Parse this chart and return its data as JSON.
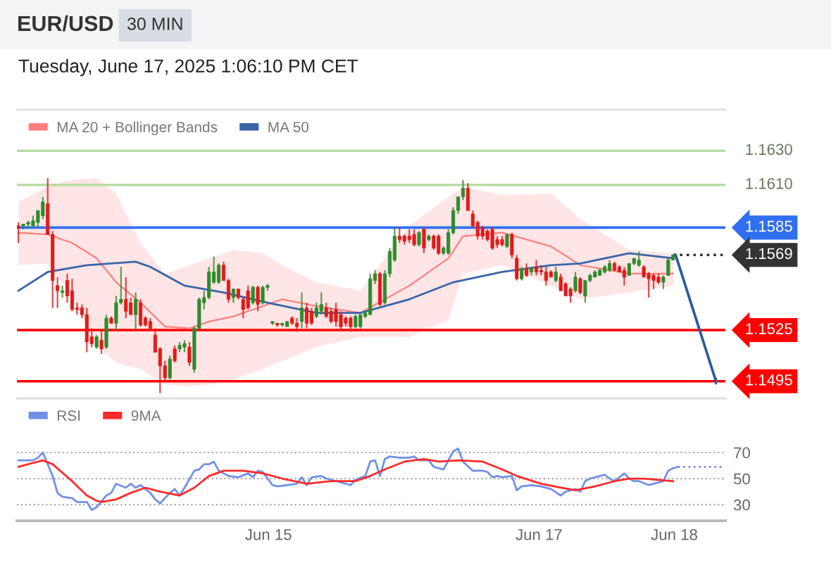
{
  "chart_data": [
    {
      "type": "candlestick",
      "title": "EUR/USD",
      "subtitle": "30 MIN",
      "annotations": [
        "Tuesday, June 17, 2025 1:06:10 PM CET"
      ],
      "xlim": [
        "2025-06-13T03:23",
        "2025-06-18T09:03"
      ],
      "ylim": [
        1.1485,
        1.1654
      ],
      "tick_labels": false,
      "legend": "top left",
      "series": [
        {
          "x": [
            "2025-06-13T03:39",
            "2025-06-13T04:31",
            "2025-06-13T05:23",
            "2025-06-13T06:15",
            "2025-06-13T07:07",
            "2025-06-13T07:59",
            "2025-06-13T08:51",
            "2025-06-13T09:43",
            "2025-06-13T10:35",
            "2025-06-13T11:27",
            "2025-06-13T12:19",
            "2025-06-13T13:11",
            "2025-06-13T14:03",
            "2025-06-13T14:55",
            "2025-06-13T15:47",
            "2025-06-13T16:39",
            "2025-06-13T17:31",
            "2025-06-13T18:23",
            "2025-06-13T19:15",
            "2025-06-13T20:07",
            "2025-06-13T20:59",
            "2025-06-13T21:51",
            "2025-06-13T22:43",
            "2025-06-13T23:35",
            "2025-06-14T00:27",
            "2025-06-14T01:19",
            "2025-06-14T02:11",
            "2025-06-14T03:03",
            "2025-06-14T03:55",
            "2025-06-14T04:47",
            "2025-06-14T05:39",
            "2025-06-14T06:31",
            "2025-06-14T07:23",
            "2025-06-14T08:15",
            "2025-06-14T09:07",
            "2025-06-14T09:59",
            "2025-06-14T10:51",
            "2025-06-14T11:43",
            "2025-06-14T12:35",
            "2025-06-14T13:27",
            "2025-06-14T14:19",
            "2025-06-14T15:11",
            "2025-06-14T16:03",
            "2025-06-14T16:55",
            "2025-06-14T17:47",
            "2025-06-14T18:39",
            "2025-06-14T19:31",
            "2025-06-14T20:23",
            "2025-06-14T21:15",
            "2025-06-14T22:07",
            "2025-06-14T22:59",
            "2025-06-14T23:51",
            "2025-06-15T00:43",
            "2025-06-15T01:35",
            "2025-06-15T02:27",
            "2025-06-15T03:19",
            "2025-06-15T04:11",
            "2025-06-15T05:03",
            "2025-06-15T05:55",
            "2025-06-15T06:47",
            "2025-06-15T07:39",
            "2025-06-15T08:31",
            "2025-06-15T09:23",
            "2025-06-15T10:15",
            "2025-06-15T11:07",
            "2025-06-15T11:59",
            "2025-06-15T12:51",
            "2025-06-15T13:43",
            "2025-06-15T14:35",
            "2025-06-15T15:27",
            "2025-06-15T16:19",
            "2025-06-15T17:11",
            "2025-06-15T18:03",
            "2025-06-15T18:55",
            "2025-06-15T19:47",
            "2025-06-15T20:39",
            "2025-06-15T21:31",
            "2025-06-15T22:23",
            "2025-06-15T23:15",
            "2025-06-16T00:07",
            "2025-06-16T00:59",
            "2025-06-16T01:51",
            "2025-06-16T02:43",
            "2025-06-16T03:35",
            "2025-06-16T04:27",
            "2025-06-16T05:19",
            "2025-06-16T06:11",
            "2025-06-16T07:03",
            "2025-06-16T07:55",
            "2025-06-16T08:47",
            "2025-06-16T09:39",
            "2025-06-16T10:31",
            "2025-06-16T11:23",
            "2025-06-16T12:15",
            "2025-06-16T13:07",
            "2025-06-16T13:59",
            "2025-06-16T14:51",
            "2025-06-16T15:43",
            "2025-06-16T16:35",
            "2025-06-16T17:27",
            "2025-06-16T18:19",
            "2025-06-16T19:11",
            "2025-06-16T20:03",
            "2025-06-16T20:55",
            "2025-06-16T21:47",
            "2025-06-16T22:39",
            "2025-06-16T23:31",
            "2025-06-17T00:23",
            "2025-06-17T01:15",
            "2025-06-17T02:07",
            "2025-06-17T02:59",
            "2025-06-17T03:51",
            "2025-06-17T04:43",
            "2025-06-17T05:35",
            "2025-06-17T06:27",
            "2025-06-17T07:19",
            "2025-06-17T08:11",
            "2025-06-17T09:03",
            "2025-06-17T09:55",
            "2025-06-17T10:47",
            "2025-06-17T11:39",
            "2025-06-17T12:31",
            "2025-06-17T13:23",
            "2025-06-17T14:15",
            "2025-06-17T15:07",
            "2025-06-17T15:59",
            "2025-06-17T16:51",
            "2025-06-17T17:43",
            "2025-06-17T18:35",
            "2025-06-17T19:27",
            "2025-06-17T20:19",
            "2025-06-17T21:11",
            "2025-06-17T22:03",
            "2025-06-17T22:55",
            "2025-06-17T23:47"
          ],
          "ohlc": [
            [
              1.1586,
              1.1588,
              1.1576,
              1.1585
            ],
            [
              1.1586,
              1.1587,
              1.1584,
              1.1587
            ],
            [
              1.1587,
              1.1589,
              1.1585,
              1.1588
            ],
            [
              1.1586,
              1.1592,
              1.1585,
              1.1589
            ],
            [
              1.1588,
              1.1595,
              1.1585,
              1.1595
            ],
            [
              1.1592,
              1.1603,
              1.159,
              1.16
            ],
            [
              1.1599,
              1.1614,
              1.1581,
              1.1581
            ],
            [
              1.1581,
              1.1583,
              1.1538,
              1.1554
            ],
            [
              1.1551,
              1.1556,
              1.1538,
              1.1548
            ],
            [
              1.1547,
              1.1551,
              1.1544,
              1.1548
            ],
            [
              1.1554,
              1.1558,
              1.1541,
              1.1545
            ],
            [
              1.1548,
              1.1555,
              1.1536,
              1.1537
            ],
            [
              1.1538,
              1.1541,
              1.1534,
              1.1537
            ],
            [
              1.1538,
              1.154,
              1.1532,
              1.1534
            ],
            [
              1.1534,
              1.1538,
              1.1512,
              1.1518
            ],
            [
              1.1521,
              1.1526,
              1.1515,
              1.1517
            ],
            [
              1.1515,
              1.1522,
              1.1514,
              1.1521
            ],
            [
              1.1519,
              1.1525,
              1.1511,
              1.1514
            ],
            [
              1.1515,
              1.1534,
              1.1514,
              1.1532
            ],
            [
              1.1532,
              1.1533,
              1.1529,
              1.1529
            ],
            [
              1.1529,
              1.1545,
              1.1525,
              1.1541
            ],
            [
              1.1541,
              1.1562,
              1.154,
              1.1543
            ],
            [
              1.1543,
              1.1556,
              1.1532,
              1.1536
            ],
            [
              1.1541,
              1.1544,
              1.1534,
              1.1534
            ],
            [
              1.1534,
              1.1547,
              1.1525,
              1.1543
            ],
            [
              1.1541,
              1.1543,
              1.1527,
              1.1528
            ],
            [
              1.1532,
              1.1533,
              1.1527,
              1.1528
            ],
            [
              1.153,
              1.1532,
              1.1525,
              1.1526
            ],
            [
              1.1522,
              1.1526,
              1.1512,
              1.1512
            ],
            [
              1.1514,
              1.1515,
              1.1488,
              1.1504
            ],
            [
              1.1504,
              1.1507,
              1.1495,
              1.1497
            ],
            [
              1.1497,
              1.151,
              1.1496,
              1.1508
            ],
            [
              1.1514,
              1.1516,
              1.1506,
              1.1507
            ],
            [
              1.1514,
              1.1518,
              1.1512,
              1.1516
            ],
            [
              1.1515,
              1.1519,
              1.1512,
              1.1517
            ],
            [
              1.1515,
              1.1518,
              1.1504,
              1.1506
            ],
            [
              1.1502,
              1.1527,
              1.15,
              1.1526
            ],
            [
              1.1526,
              1.1544,
              1.1525,
              1.1543
            ],
            [
              1.1541,
              1.1548,
              1.1537,
              1.1544
            ],
            [
              1.1544,
              1.1562,
              1.1543,
              1.1559
            ],
            [
              1.1553,
              1.1568,
              1.1552,
              1.1559
            ],
            [
              1.1553,
              1.1564,
              1.1552,
              1.1563
            ],
            [
              1.1563,
              1.1565,
              1.1554,
              1.1554
            ],
            [
              1.1554,
              1.1555,
              1.1541,
              1.1543
            ],
            [
              1.1544,
              1.1549,
              1.1541,
              1.1549
            ],
            [
              1.1549,
              1.1549,
              1.1543,
              1.1544
            ],
            [
              1.1543,
              1.1544,
              1.1532,
              1.1537
            ],
            [
              1.1548,
              1.1551,
              1.1537,
              1.1538
            ],
            [
              1.1541,
              1.1551,
              1.154,
              1.155
            ],
            [
              1.155,
              1.1551,
              1.1536,
              1.154
            ],
            [
              1.1541,
              1.1551,
              1.154,
              1.155
            ],
            [
              1.155,
              1.1552,
              1.1548,
              1.1551
            ],
            [
              1.1529,
              1.153,
              1.1528,
              1.153
            ],
            [
              1.1529,
              1.1529,
              1.1527,
              1.1528
            ],
            [
              1.1528,
              1.1529,
              1.1527,
              1.1529
            ],
            [
              1.1527,
              1.153,
              1.1527,
              1.153
            ],
            [
              1.1532,
              1.1533,
              1.1528,
              1.1529
            ],
            [
              1.1529,
              1.1532,
              1.1524,
              1.1527
            ],
            [
              1.153,
              1.1547,
              1.1526,
              1.1538
            ],
            [
              1.1538,
              1.1541,
              1.1526,
              1.1529
            ],
            [
              1.1536,
              1.1538,
              1.1528,
              1.1529
            ],
            [
              1.1533,
              1.1541,
              1.1532,
              1.1538
            ],
            [
              1.1536,
              1.1547,
              1.1534,
              1.154
            ],
            [
              1.1538,
              1.1541,
              1.1532,
              1.1533
            ],
            [
              1.1536,
              1.1538,
              1.1529,
              1.153
            ],
            [
              1.1537,
              1.1541,
              1.1527,
              1.153
            ],
            [
              1.1534,
              1.1536,
              1.1525,
              1.1527
            ],
            [
              1.1532,
              1.1533,
              1.1527,
              1.1529
            ],
            [
              1.1532,
              1.1533,
              1.1524,
              1.1527
            ],
            [
              1.1527,
              1.1534,
              1.1526,
              1.1533
            ],
            [
              1.1527,
              1.1534,
              1.1526,
              1.1534
            ],
            [
              1.1533,
              1.1536,
              1.1532,
              1.1535
            ],
            [
              1.1534,
              1.1558,
              1.1534,
              1.1555
            ],
            [
              1.1554,
              1.156,
              1.1552,
              1.1558
            ],
            [
              1.1558,
              1.1559,
              1.1539,
              1.154
            ],
            [
              1.1541,
              1.156,
              1.154,
              1.1558
            ],
            [
              1.1558,
              1.1573,
              1.1556,
              1.1571
            ],
            [
              1.1566,
              1.1585,
              1.1565,
              1.158
            ],
            [
              1.158,
              1.1585,
              1.1576,
              1.1578
            ],
            [
              1.158,
              1.1581,
              1.1575,
              1.1577
            ],
            [
              1.158,
              1.1584,
              1.1576,
              1.1578
            ],
            [
              1.1581,
              1.1584,
              1.1574,
              1.1575
            ],
            [
              1.1575,
              1.1583,
              1.1574,
              1.1582
            ],
            [
              1.1584,
              1.1585,
              1.157,
              1.1573
            ],
            [
              1.1578,
              1.1581,
              1.1577,
              1.158
            ],
            [
              1.158,
              1.1581,
              1.1572,
              1.1573
            ],
            [
              1.158,
              1.1581,
              1.1569,
              1.157
            ],
            [
              1.157,
              1.1574,
              1.1569,
              1.1573
            ],
            [
              1.157,
              1.1584,
              1.1569,
              1.1582
            ],
            [
              1.1582,
              1.1597,
              1.1581,
              1.1595
            ],
            [
              1.1595,
              1.1603,
              1.1593,
              1.1603
            ],
            [
              1.1603,
              1.1613,
              1.1601,
              1.1608
            ],
            [
              1.1608,
              1.1611,
              1.1595,
              1.1595
            ],
            [
              1.1593,
              1.1595,
              1.1585,
              1.1586
            ],
            [
              1.1588,
              1.1589,
              1.1578,
              1.158
            ],
            [
              1.1585,
              1.1586,
              1.1578,
              1.158
            ],
            [
              1.1583,
              1.1584,
              1.1577,
              1.1578
            ],
            [
              1.1584,
              1.1585,
              1.1572,
              1.1573
            ],
            [
              1.1578,
              1.158,
              1.1573,
              1.1575
            ],
            [
              1.1578,
              1.158,
              1.1574,
              1.1575
            ],
            [
              1.1574,
              1.1581,
              1.1573,
              1.1581
            ],
            [
              1.1581,
              1.1582,
              1.1567,
              1.1569
            ],
            [
              1.1567,
              1.1569,
              1.1554,
              1.1555
            ],
            [
              1.1555,
              1.1562,
              1.1554,
              1.1561
            ],
            [
              1.1561,
              1.1564,
              1.1556,
              1.1557
            ],
            [
              1.1559,
              1.1562,
              1.1557,
              1.1561
            ],
            [
              1.1562,
              1.1566,
              1.1557,
              1.1559
            ],
            [
              1.156,
              1.1563,
              1.1557,
              1.1559
            ],
            [
              1.1559,
              1.1562,
              1.1551,
              1.1554
            ],
            [
              1.1559,
              1.156,
              1.1556,
              1.1556
            ],
            [
              1.1554,
              1.1562,
              1.1553,
              1.1559
            ],
            [
              1.1556,
              1.1558,
              1.1548,
              1.1548
            ],
            [
              1.1552,
              1.1553,
              1.1545,
              1.1545
            ],
            [
              1.1549,
              1.155,
              1.1541,
              1.1545
            ],
            [
              1.1548,
              1.1559,
              1.1547,
              1.1556
            ],
            [
              1.1555,
              1.1556,
              1.1546,
              1.1547
            ],
            [
              1.1545,
              1.1554,
              1.1541,
              1.1554
            ],
            [
              1.1554,
              1.1558,
              1.1553,
              1.1557
            ],
            [
              1.1556,
              1.156,
              1.1556,
              1.1559
            ],
            [
              1.1557,
              1.1561,
              1.1557,
              1.156
            ],
            [
              1.1559,
              1.1563,
              1.1558,
              1.1562
            ],
            [
              1.156,
              1.1566,
              1.1559,
              1.1564
            ],
            [
              1.1564,
              1.1565,
              1.156,
              1.156
            ],
            [
              1.1562,
              1.1563,
              1.1559,
              1.1559
            ],
            [
              1.156,
              1.1562,
              1.1551,
              1.1556
            ],
            [
              1.1557,
              1.1564,
              1.1557,
              1.1564
            ],
            [
              1.1564,
              1.1567,
              1.1563,
              1.1567
            ],
            [
              1.1563,
              1.1571,
              1.1562,
              1.1566
            ],
            [
              1.1562,
              1.1563,
              1.1556,
              1.1556
            ],
            [
              1.1558,
              1.1559,
              1.1544,
              1.1555
            ],
            [
              1.1557,
              1.1558,
              1.1549,
              1.1554
            ],
            [
              1.1556,
              1.1558,
              1.1552,
              1.1553
            ],
            [
              1.1553,
              1.1557,
              1.1549,
              1.1556
            ],
            [
              1.1557,
              1.1567,
              1.1557,
              1.1566
            ],
            [
              1.1566,
              1.1569,
              1.1566,
              1.1569
            ]
          ],
          "colors": [
            "#e01b1b",
            "#2e8b2e",
            "#2e8b2e",
            "#2e8b2e",
            "#2e8b2e",
            "#2e8b2e",
            "#e01b1b",
            "#e01b1b",
            "#e01b1b",
            "#2e8b2e",
            "#e01b1b",
            "#e01b1b",
            "#e01b1b",
            "#e01b1b",
            "#e01b1b",
            "#e01b1b",
            "#2e8b2e",
            "#e01b1b",
            "#2e8b2e",
            "#e01b1b",
            "#2e8b2e",
            "#2e8b2e",
            "#e01b1b",
            "#e01b1b",
            "#2e8b2e",
            "#e01b1b",
            "#e01b1b",
            "#e01b1b",
            "#e01b1b",
            "#e01b1b",
            "#e01b1b",
            "#2e8b2e",
            "#e01b1b",
            "#2e8b2e",
            "#2e8b2e",
            "#e01b1b",
            "#2e8b2e",
            "#2e8b2e",
            "#2e8b2e",
            "#2e8b2e",
            "#2e8b2e",
            "#2e8b2e",
            "#e01b1b",
            "#e01b1b",
            "#2e8b2e",
            "#e01b1b",
            "#e01b1b",
            "#e01b1b",
            "#2e8b2e",
            "#e01b1b",
            "#2e8b2e",
            "#2e8b2e",
            "#2e8b2e",
            "#e01b1b",
            "#2e8b2e",
            "#2e8b2e",
            "#e01b1b",
            "#e01b1b",
            "#2e8b2e",
            "#e01b1b",
            "#e01b1b",
            "#2e8b2e",
            "#2e8b2e",
            "#e01b1b",
            "#e01b1b",
            "#e01b1b",
            "#e01b1b",
            "#e01b1b",
            "#e01b1b",
            "#2e8b2e",
            "#2e8b2e",
            "#2e8b2e",
            "#2e8b2e",
            "#2e8b2e",
            "#e01b1b",
            "#2e8b2e",
            "#2e8b2e",
            "#2e8b2e",
            "#e01b1b",
            "#e01b1b",
            "#e01b1b",
            "#e01b1b",
            "#2e8b2e",
            "#e01b1b",
            "#2e8b2e",
            "#e01b1b",
            "#e01b1b",
            "#2e8b2e",
            "#2e8b2e",
            "#2e8b2e",
            "#2e8b2e",
            "#2e8b2e",
            "#e01b1b",
            "#e01b1b",
            "#e01b1b",
            "#e01b1b",
            "#e01b1b",
            "#e01b1b",
            "#e01b1b",
            "#e01b1b",
            "#2e8b2e",
            "#e01b1b",
            "#e01b1b",
            "#2e8b2e",
            "#e01b1b",
            "#2e8b2e",
            "#e01b1b",
            "#e01b1b",
            "#e01b1b",
            "#e01b1b",
            "#2e8b2e",
            "#e01b1b",
            "#e01b1b",
            "#e01b1b",
            "#2e8b2e",
            "#e01b1b",
            "#2e8b2e",
            "#2e8b2e",
            "#2e8b2e",
            "#2e8b2e",
            "#2e8b2e",
            "#2e8b2e",
            "#e01b1b",
            "#e01b1b",
            "#e01b1b",
            "#2e8b2e",
            "#2e8b2e",
            "#2e8b2e",
            "#e01b1b",
            "#e01b1b",
            "#e01b1b",
            "#e01b1b",
            "#2e8b2e",
            "#2e8b2e",
            "#2e8b2e"
          ]
        },
        {
          "type": "line",
          "name": "MA 20 + Bollinger Bands",
          "color": "#ff7f7f",
          "x": [
            "2025-06-13T03:39",
            "2025-06-13T08:51",
            "2025-06-13T13:11",
            "2025-06-13T17:31",
            "2025-06-13T20:59",
            "2025-06-14T01:19",
            "2025-06-14T05:39",
            "2025-06-14T09:59",
            "2025-06-14T13:27",
            "2025-06-14T17:47",
            "2025-06-14T22:59",
            "2025-06-15T02:27",
            "2025-06-15T08:31",
            "2025-06-15T16:19",
            "2025-06-16T00:59",
            "2025-06-16T07:55",
            "2025-06-16T10:31",
            "2025-06-16T17:27",
            "2025-06-17T02:07",
            "2025-06-17T07:19",
            "2025-06-17T15:59",
            "2025-06-17T23:47"
          ],
          "values": [
            1.1582,
            1.1581,
            1.1576,
            1.1567,
            1.1553,
            1.1541,
            1.1527,
            1.1526,
            1.153,
            1.1533,
            1.1539,
            1.1543,
            1.1539,
            1.1535,
            1.1551,
            1.1567,
            1.158,
            1.1582,
            1.1574,
            1.1563,
            1.1558,
            1.1558
          ],
          "upper": [
            1.16,
            1.1609,
            1.1613,
            1.1614,
            1.1605,
            1.1576,
            1.1558,
            1.1563,
            1.1567,
            1.1572,
            1.157,
            1.1563,
            1.1553,
            1.1548,
            1.1586,
            1.1603,
            1.1609,
            1.1604,
            1.1605,
            1.159,
            1.1572,
            1.157
          ],
          "lower": [
            1.1563,
            1.1564,
            1.1545,
            1.1516,
            1.1506,
            1.1502,
            1.1493,
            1.1492,
            1.1493,
            1.1496,
            1.1502,
            1.1507,
            1.1515,
            1.1521,
            1.1521,
            1.1531,
            1.1558,
            1.1563,
            1.1551,
            1.1543,
            1.1547,
            1.1551
          ]
        },
        {
          "type": "line",
          "name": "MA 50",
          "color": "#3a64a8",
          "x": [
            "2025-06-13T03:39",
            "2025-06-13T08:51",
            "2025-06-13T15:47",
            "2025-06-14T00:27",
            "2025-06-14T03:03",
            "2025-06-14T09:07",
            "2025-06-14T16:03",
            "2025-06-14T23:51",
            "2025-06-15T08:31",
            "2025-06-15T16:19",
            "2025-06-16T00:59",
            "2025-06-16T08:47",
            "2025-06-16T17:27",
            "2025-06-17T02:07",
            "2025-06-17T07:19",
            "2025-06-17T15:59",
            "2025-06-17T23:47"
          ],
          "values": [
            1.1548,
            1.1559,
            1.1563,
            1.1565,
            1.1562,
            1.1551,
            1.1547,
            1.1541,
            1.1535,
            1.1535,
            1.1543,
            1.1553,
            1.1559,
            1.1563,
            1.1564,
            1.157,
            1.1567
          ]
        }
      ],
      "ref_lines": [
        {
          "axis": "y",
          "value": 1.163,
          "label": "1.1630",
          "color": "#b9dca3"
        },
        {
          "axis": "y",
          "value": 1.161,
          "label": "1.1610",
          "color": "#b9dca3"
        },
        {
          "axis": "y",
          "value": 1.1585,
          "label": "1.1585",
          "color": "#2f6ff0"
        },
        {
          "axis": "y",
          "value": 1.1569,
          "label": "1.1569",
          "color": "#333333",
          "line_style": "dotted"
        },
        {
          "axis": "y",
          "value": 1.1525,
          "label": "1.1525",
          "color": "#ff0000"
        },
        {
          "axis": "y",
          "value": 1.1495,
          "label": "1.1495",
          "color": "#ff0000"
        }
      ]
    },
    {
      "type": "line",
      "xlim": [
        "2025-06-13T03:23",
        "2025-06-18T09:03"
      ],
      "xticks": [
        {
          "value": "2025-06-15",
          "label": "Jun 15"
        },
        {
          "value": "2025-06-17",
          "label": "Jun 17"
        },
        {
          "value": "2025-06-18",
          "label": "Jun 18"
        }
      ],
      "ylim": [
        17.6,
        111.6
      ],
      "yticks": [
        30,
        50,
        70
      ],
      "grid": "y",
      "legend": "top left",
      "series": [
        {
          "name": "RSI",
          "color": "#7090e8",
          "x": [
            "2025-06-13T03:39",
            "2025-06-13T06:15",
            "2025-06-13T07:07",
            "2025-06-13T07:59",
            "2025-06-13T09:43",
            "2025-06-13T10:35",
            "2025-06-13T11:27",
            "2025-06-13T13:11",
            "2025-06-13T14:03",
            "2025-06-13T15:47",
            "2025-06-13T16:39",
            "2025-06-13T17:31",
            "2025-06-13T19:15",
            "2025-06-13T20:07",
            "2025-06-13T20:59",
            "2025-06-13T22:43",
            "2025-06-13T23:35",
            "2025-06-14T00:27",
            "2025-06-14T01:19",
            "2025-06-14T03:03",
            "2025-06-14T03:55",
            "2025-06-14T04:47",
            "2025-06-14T06:31",
            "2025-06-14T07:23",
            "2025-06-14T08:15",
            "2025-06-14T09:07",
            "2025-06-14T10:51",
            "2025-06-14T11:43",
            "2025-06-14T12:35",
            "2025-06-14T13:27",
            "2025-06-14T14:19",
            "2025-06-14T15:11",
            "2025-06-14T16:03",
            "2025-06-14T16:55",
            "2025-06-14T18:39",
            "2025-06-14T20:23",
            "2025-06-14T21:15",
            "2025-06-14T22:07",
            "2025-06-14T22:59",
            "2025-06-14T23:51",
            "2025-06-15T00:43",
            "2025-06-15T01:35",
            "2025-06-15T03:19",
            "2025-06-15T05:03",
            "2025-06-15T05:55",
            "2025-06-15T06:47",
            "2025-06-15T07:39",
            "2025-06-15T09:23",
            "2025-06-15T10:15",
            "2025-06-15T11:07",
            "2025-06-15T11:59",
            "2025-06-15T13:43",
            "2025-06-15T14:35",
            "2025-06-15T15:27",
            "2025-06-15T17:11",
            "2025-06-15T18:03",
            "2025-06-15T18:55",
            "2025-06-15T19:47",
            "2025-06-15T20:39",
            "2025-06-15T21:31",
            "2025-06-15T23:15",
            "2025-06-16T00:59",
            "2025-06-16T01:51",
            "2025-06-16T02:43",
            "2025-06-16T04:27",
            "2025-06-16T05:19",
            "2025-06-16T07:03",
            "2025-06-16T07:55",
            "2025-06-16T08:47",
            "2025-06-16T09:39",
            "2025-06-16T10:31",
            "2025-06-16T12:15",
            "2025-06-16T13:59",
            "2025-06-16T14:51",
            "2025-06-16T15:43",
            "2025-06-16T16:35",
            "2025-06-16T17:27",
            "2025-06-16T19:11",
            "2025-06-16T20:03",
            "2025-06-16T20:55",
            "2025-06-16T22:39",
            "2025-06-17T00:23",
            "2025-06-17T02:07",
            "2025-06-17T03:51",
            "2025-06-17T04:43",
            "2025-06-17T06:27",
            "2025-06-17T07:19",
            "2025-06-17T08:11",
            "2025-06-17T09:03",
            "2025-06-17T10:47",
            "2025-06-17T11:39",
            "2025-06-17T12:31",
            "2025-06-17T13:23",
            "2025-06-17T15:07",
            "2025-06-17T15:59",
            "2025-06-17T16:51",
            "2025-06-17T17:43",
            "2025-06-17T19:27",
            "2025-06-17T20:19",
            "2025-06-17T22:03",
            "2025-06-17T22:55",
            "2025-06-17T23:47",
            "2025-06-18T00:39"
          ],
          "values": [
            64,
            64,
            66,
            70,
            52,
            39,
            36,
            35,
            32,
            32,
            26,
            28,
            37,
            39,
            46,
            43,
            46,
            43,
            45,
            39,
            34,
            31,
            39,
            42,
            37,
            43,
            56,
            57,
            61,
            61,
            63,
            56,
            54,
            52,
            51,
            54,
            51,
            56,
            55,
            50,
            45,
            44,
            45,
            46,
            51,
            45,
            51,
            52,
            50,
            49,
            48,
            46,
            45,
            49,
            52,
            63,
            64,
            52,
            65,
            67,
            66,
            66,
            67,
            64,
            64,
            59,
            57,
            64,
            71,
            73,
            63,
            56,
            56,
            55,
            51,
            52,
            51,
            52,
            41,
            44,
            45,
            44,
            42,
            37,
            40,
            42,
            40,
            48,
            50,
            52,
            53,
            50,
            48,
            54,
            50,
            48,
            48,
            45,
            46,
            48,
            56,
            58,
            59
          ]
        },
        {
          "name": "9MA",
          "color": "#ff2a2a",
          "x": [
            "2025-06-13T03:39",
            "2025-06-13T07:59",
            "2025-06-13T09:43",
            "2025-06-13T13:11",
            "2025-06-13T15:47",
            "2025-06-13T17:31",
            "2025-06-13T18:23",
            "2025-06-13T20:59",
            "2025-06-13T23:35",
            "2025-06-14T02:11",
            "2025-06-14T04:47",
            "2025-06-14T08:15",
            "2025-06-14T10:51",
            "2025-06-14T13:27",
            "2025-06-14T16:03",
            "2025-06-14T19:31",
            "2025-06-14T22:59",
            "2025-06-15T02:27",
            "2025-06-15T06:47",
            "2025-06-15T11:07",
            "2025-06-15T15:27",
            "2025-06-15T18:03",
            "2025-06-15T20:39",
            "2025-06-16T00:07",
            "2025-06-16T03:35",
            "2025-06-16T06:11",
            "2025-06-16T09:39",
            "2025-06-16T13:59",
            "2025-06-16T17:27",
            "2025-06-16T20:03",
            "2025-06-17T00:23",
            "2025-06-17T03:51",
            "2025-06-17T06:27",
            "2025-06-17T09:55",
            "2025-06-17T13:23",
            "2025-06-17T15:59",
            "2025-06-17T18:35",
            "2025-06-17T23:47"
          ],
          "values": [
            59,
            64,
            61,
            48,
            37,
            33,
            32,
            34,
            39,
            43,
            40,
            37,
            43,
            52,
            56,
            56,
            54,
            50,
            46,
            48,
            48,
            52,
            57,
            63,
            65,
            63,
            64,
            63,
            57,
            52,
            46,
            43,
            41,
            44,
            48,
            50,
            50,
            48
          ]
        },
        {
          "color": "#7090e8",
          "line_style": "dotted",
          "x": [
            "2025-06-18T00:39",
            "2025-06-18T08:32"
          ],
          "values": [
            59,
            59
          ]
        }
      ]
    }
  ]
}
